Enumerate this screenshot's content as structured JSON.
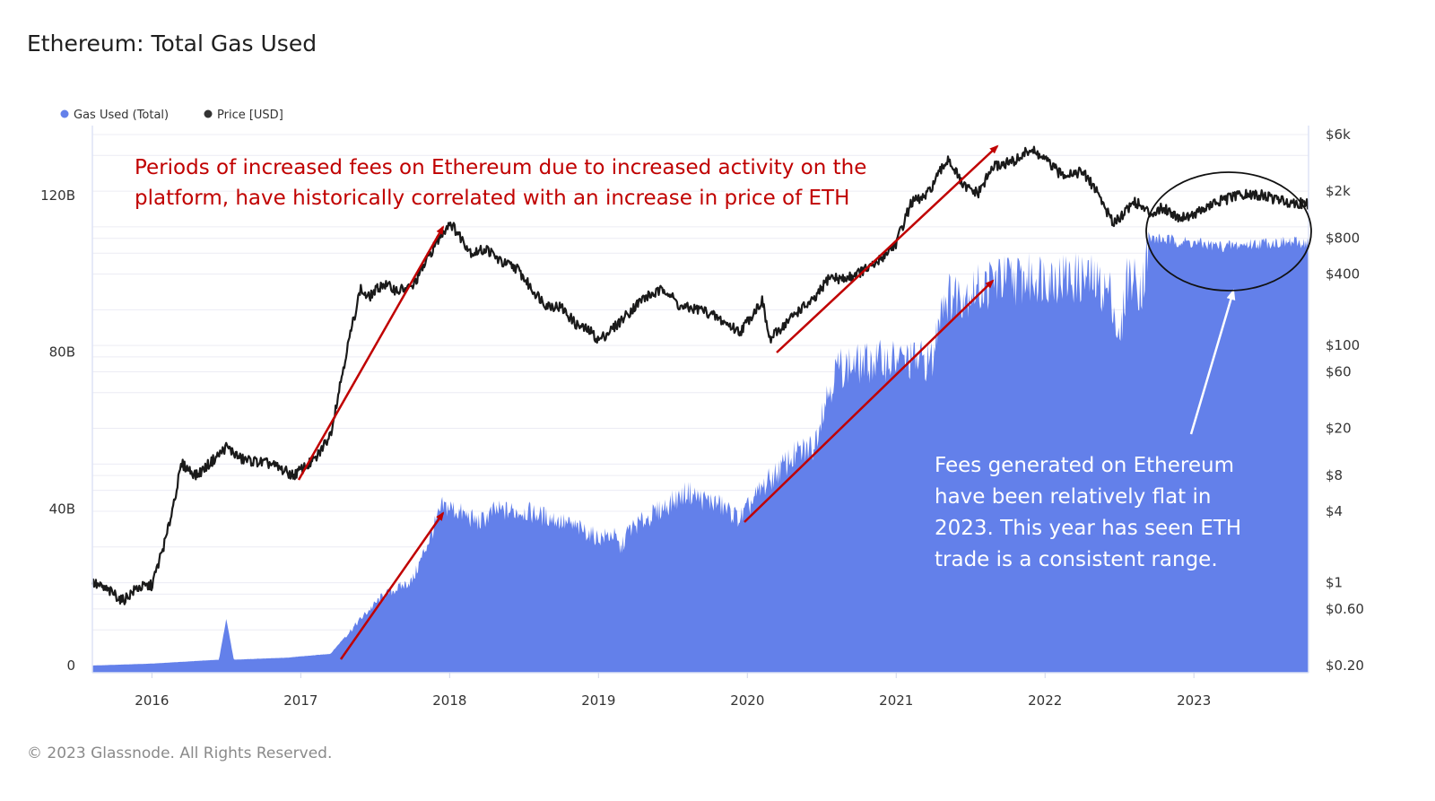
{
  "title": "Ethereum: Total Gas Used",
  "footer": "© 2023 Glassnode. All Rights Reserved.",
  "colors": {
    "gas": "#6380ea",
    "price": "#1a1a1a",
    "arrow": "#c00000",
    "annotation_red": "#c00000",
    "annotation_white": "#ffffff"
  },
  "chart_data": {
    "type": "area",
    "legend": [
      {
        "name": "Gas Used (Total)",
        "color": "#6380ea"
      },
      {
        "name": "Price [USD]",
        "color": "#333333"
      }
    ],
    "legend_position": "top-left",
    "x_ticks": [
      "2016",
      "2017",
      "2018",
      "2019",
      "2020",
      "2021",
      "2022",
      "2023"
    ],
    "x_range": [
      2015.6,
      2023.77
    ],
    "left_axis": {
      "ticks": [
        "0",
        "40B",
        "80B",
        "120B"
      ],
      "tick_values": [
        0,
        40,
        80,
        120
      ],
      "ylim": [
        0,
        140
      ],
      "unit": "billions"
    },
    "right_axis": {
      "scale": "log",
      "ticks": [
        "$6k",
        "$2k",
        "$800",
        "$400",
        "$100",
        "$60",
        "$20",
        "$8",
        "$4",
        "$1",
        "$0.60",
        "$0.20"
      ],
      "tick_values": [
        6000,
        2000,
        800,
        400,
        100,
        60,
        20,
        8,
        4,
        1,
        0.6,
        0.2
      ],
      "ylim": [
        0.18,
        6500
      ]
    },
    "gas_series": {
      "name": "Gas Used (Total)",
      "x": [
        2015.6,
        2016.0,
        2016.45,
        2016.5,
        2016.55,
        2016.9,
        2017.2,
        2017.4,
        2017.55,
        2017.75,
        2017.95,
        2018.0,
        2018.2,
        2018.3,
        2018.5,
        2018.7,
        2018.9,
        2019.0,
        2019.1,
        2019.15,
        2019.2,
        2019.4,
        2019.6,
        2019.7,
        2019.8,
        2019.95,
        2020.1,
        2020.3,
        2020.45,
        2020.5,
        2020.6,
        2020.9,
        2021.25,
        2021.3,
        2021.6,
        2021.65,
        2021.9,
        2021.95,
        2022.3,
        2022.45,
        2022.5,
        2022.55,
        2022.65,
        2022.7,
        2022.75,
        2023.2,
        2023.5,
        2023.77
      ],
      "values": [
        0,
        0.5,
        1.5,
        12,
        1.5,
        2,
        3,
        12,
        18,
        22,
        41,
        41,
        37,
        40,
        40,
        38,
        35,
        33,
        34,
        30,
        35,
        40,
        45,
        43,
        42,
        38,
        46,
        54,
        57,
        66,
        77,
        79,
        79,
        95,
        98,
        100,
        100,
        101,
        100,
        96,
        82,
        101,
        98,
        109,
        109,
        107,
        108,
        108
      ]
    },
    "price_series": {
      "name": "Price [USD]",
      "x": [
        2015.6,
        2015.75,
        2015.8,
        2015.9,
        2016.0,
        2016.1,
        2016.2,
        2016.3,
        2016.45,
        2016.5,
        2016.6,
        2016.8,
        2016.95,
        2017.1,
        2017.2,
        2017.3,
        2017.4,
        2017.45,
        2017.55,
        2017.65,
        2017.75,
        2017.9,
        2018.0,
        2018.05,
        2018.15,
        2018.25,
        2018.35,
        2018.45,
        2018.55,
        2018.65,
        2018.75,
        2018.85,
        2018.95,
        2019.0,
        2019.1,
        2019.3,
        2019.45,
        2019.55,
        2019.7,
        2019.8,
        2019.95,
        2020.1,
        2020.15,
        2020.2,
        2020.35,
        2020.45,
        2020.55,
        2020.65,
        2020.85,
        2021.0,
        2021.1,
        2021.2,
        2021.35,
        2021.45,
        2021.55,
        2021.65,
        2021.8,
        2021.9,
        2022.0,
        2022.1,
        2022.25,
        2022.35,
        2022.45,
        2022.5,
        2022.6,
        2022.7,
        2022.8,
        2022.9,
        2023.0,
        2023.15,
        2023.3,
        2023.45,
        2023.6,
        2023.77
      ],
      "values": [
        1.0,
        0.8,
        0.7,
        0.9,
        0.95,
        2.5,
        10,
        8,
        12,
        14,
        11,
        10,
        8,
        11,
        18,
        80,
        300,
        250,
        330,
        290,
        310,
        700,
        1100,
        900,
        600,
        650,
        500,
        450,
        300,
        220,
        210,
        150,
        130,
        110,
        140,
        250,
        300,
        210,
        200,
        170,
        130,
        240,
        110,
        130,
        200,
        240,
        380,
        360,
        470,
        730,
        1600,
        1800,
        3800,
        2200,
        1900,
        3200,
        3600,
        4500,
        3700,
        2800,
        2900,
        2000,
        1100,
        1200,
        1650,
        1300,
        1450,
        1200,
        1280,
        1600,
        1850,
        1850,
        1650,
        1550
      ]
    }
  },
  "annotations": {
    "top_text": [
      "Periods of increased fees on Ethereum due to increased activity on the",
      "platform, have historically correlated with an increase in price of ETH"
    ],
    "bottom_text": [
      "Fees generated on Ethereum",
      "have been relatively flat in",
      "2023. This year has seen ETH",
      "trade is a consistent range."
    ]
  }
}
